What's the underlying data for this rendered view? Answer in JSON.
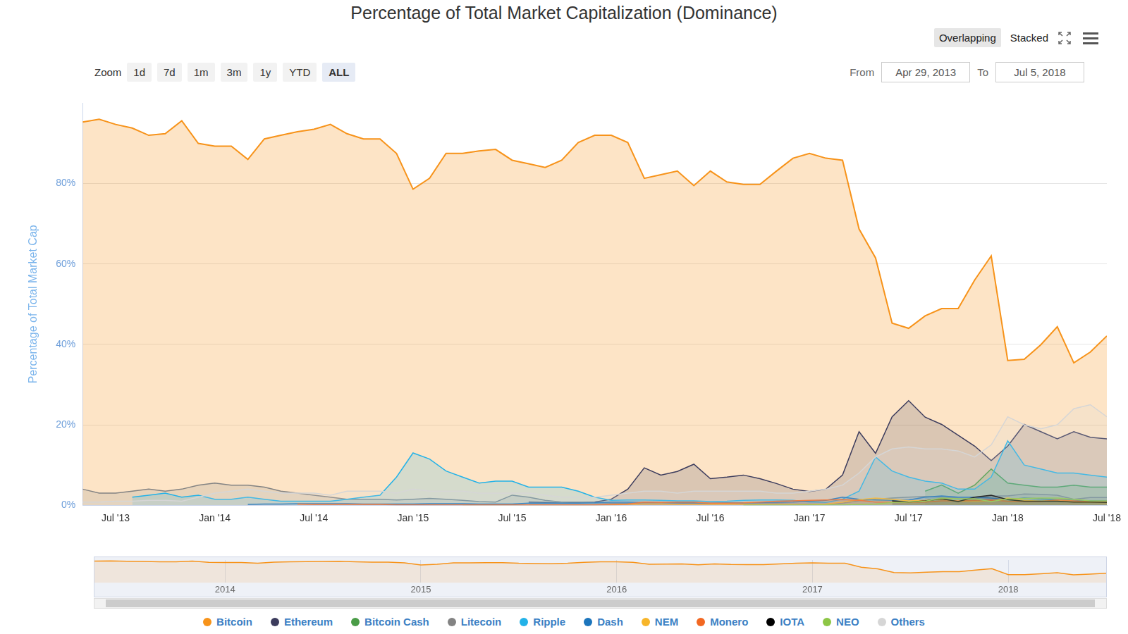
{
  "chart_data": {
    "type": "area",
    "title": "Percentage of Total Market Capitalization (Dominance)",
    "y_label": "Percentage of Total Market Cap",
    "categories": [
      null,
      null,
      "Jul '13",
      null,
      null,
      null,
      null,
      null,
      "Jan '14",
      null,
      null,
      null,
      null,
      null,
      "Jul '14",
      null,
      null,
      null,
      null,
      null,
      "Jan '15",
      null,
      null,
      null,
      null,
      null,
      "Jul '15",
      null,
      null,
      null,
      null,
      null,
      "Jan '16",
      null,
      null,
      null,
      null,
      null,
      "Jul '16",
      null,
      null,
      null,
      null,
      null,
      "Jan '17",
      null,
      null,
      null,
      null,
      null,
      "Jul '17",
      null,
      null,
      null,
      null,
      null,
      "Jan '18",
      null,
      null,
      null,
      null,
      null,
      "Jul '18"
    ],
    "ylim": [
      0,
      100
    ],
    "yticks": [
      {
        "value": 0,
        "label": "0%"
      },
      {
        "value": 20,
        "label": "20%"
      },
      {
        "value": 40,
        "label": "40%"
      },
      {
        "value": 60,
        "label": "60%"
      },
      {
        "value": 80,
        "label": "80%"
      }
    ],
    "grid": true,
    "legend": "bottom",
    "series": [
      {
        "name": "Bitcoin",
        "color": "#f7931a",
        "values": [
          95.3,
          96,
          94.7,
          93.8,
          92,
          92.4,
          95.6,
          90,
          89.3,
          89.3,
          86,
          91.1,
          92,
          92.9,
          93.5,
          94.7,
          92.4,
          91.1,
          91.1,
          87.5,
          78.6,
          81.3,
          87.5,
          87.5,
          88.1,
          88.5,
          85.8,
          84.9,
          84,
          85.8,
          90.2,
          92,
          92,
          90.2,
          81.3,
          82.2,
          83.1,
          79.5,
          83.1,
          80.4,
          79.8,
          79.8,
          83.1,
          86.3,
          87.5,
          86.3,
          85.8,
          68.7,
          61.5,
          45.3,
          44,
          47.1,
          48.9,
          48.9,
          56,
          62,
          36,
          36.3,
          39.9,
          44.4,
          35.4,
          38.1,
          42.1
        ]
      },
      {
        "name": "Ethereum",
        "color": "#3c3c5d",
        "values": [
          null,
          null,
          null,
          null,
          null,
          null,
          null,
          null,
          null,
          null,
          null,
          null,
          null,
          null,
          null,
          null,
          null,
          null,
          null,
          null,
          null,
          null,
          null,
          null,
          null,
          null,
          null,
          0.8,
          0.7,
          0.5,
          0.7,
          0.8,
          1.5,
          4,
          9.3,
          7.5,
          8.4,
          10.2,
          6.6,
          7,
          7.5,
          6.6,
          5.4,
          4,
          3.4,
          4,
          7.5,
          18.3,
          12.9,
          22,
          26,
          21.9,
          20.1,
          17.4,
          14.7,
          11.1,
          14.7,
          20.1,
          18.3,
          16.5,
          18.3,
          16.9,
          16.5
        ]
      },
      {
        "name": "Bitcoin Cash",
        "color": "#4a9c47",
        "values": [
          null,
          null,
          null,
          null,
          null,
          null,
          null,
          null,
          null,
          null,
          null,
          null,
          null,
          null,
          null,
          null,
          null,
          null,
          null,
          null,
          null,
          null,
          null,
          null,
          null,
          null,
          null,
          null,
          null,
          null,
          null,
          null,
          null,
          null,
          null,
          null,
          null,
          null,
          null,
          null,
          null,
          null,
          null,
          null,
          null,
          null,
          null,
          null,
          null,
          null,
          null,
          3.5,
          5,
          3,
          5,
          9,
          5.5,
          5,
          4.5,
          4.5,
          5,
          4.5,
          4.5
        ]
      },
      {
        "name": "Litecoin",
        "color": "#838383",
        "values": [
          4,
          3,
          3,
          3.5,
          4,
          3.5,
          4,
          5,
          5.5,
          5,
          5,
          4.5,
          3.5,
          3,
          2.5,
          2,
          1.5,
          1.5,
          1.5,
          1.3,
          1.5,
          1.7,
          1.5,
          1.2,
          0.9,
          0.8,
          2.5,
          2,
          1.2,
          0.8,
          0.8,
          0.6,
          0.5,
          0.5,
          0.4,
          0.4,
          0.4,
          0.5,
          0.4,
          0.4,
          0.4,
          0.3,
          0.4,
          0.3,
          0.3,
          0.3,
          0.5,
          1.1,
          1.5,
          1.8,
          2,
          2.2,
          2,
          1.8,
          1.7,
          2.3,
          2.3,
          2.8,
          2.7,
          2.5,
          1.5,
          1.9,
          1.9
        ]
      },
      {
        "name": "Ripple",
        "color": "#23b2e8",
        "values": [
          null,
          null,
          null,
          2,
          2.5,
          3,
          2,
          2.5,
          1.5,
          1.5,
          2,
          1.5,
          1,
          1,
          1,
          1,
          1.5,
          2,
          2.5,
          7,
          13,
          11.5,
          8.5,
          7,
          5.5,
          6,
          6,
          4.5,
          4.5,
          4.5,
          3.5,
          2,
          1.2,
          1.3,
          1.3,
          1.2,
          1.1,
          1.1,
          0.9,
          1,
          1.2,
          1.3,
          1.3,
          1.2,
          0.8,
          0.7,
          1.5,
          3.5,
          12,
          8.5,
          7,
          6,
          5.5,
          4,
          4,
          7,
          16,
          10,
          9,
          8,
          8,
          7.5,
          7
        ]
      },
      {
        "name": "Dash",
        "color": "#1c75bc",
        "values": [
          null,
          null,
          null,
          null,
          null,
          null,
          null,
          null,
          null,
          null,
          0.2,
          0.3,
          0.3,
          0.4,
          0.4,
          0.4,
          0.4,
          0.3,
          0.3,
          0.3,
          0.3,
          0.4,
          0.4,
          0.4,
          0.3,
          0.3,
          0.3,
          0.5,
          0.5,
          0.5,
          0.5,
          0.6,
          0.8,
          0.8,
          0.7,
          0.7,
          0.6,
          0.6,
          0.5,
          0.6,
          0.6,
          0.6,
          0.7,
          0.8,
          1,
          1.2,
          2,
          1.5,
          1.3,
          1.2,
          1.3,
          2,
          2.3,
          2,
          2,
          1.8,
          1.4,
          1.8,
          1.6,
          1.4,
          1.2,
          1.1,
          1.1
        ]
      },
      {
        "name": "NEM",
        "color": "#f7b52a",
        "values": [
          null,
          null,
          null,
          null,
          null,
          null,
          null,
          null,
          null,
          null,
          null,
          null,
          null,
          null,
          null,
          null,
          null,
          null,
          null,
          null,
          null,
          null,
          null,
          0.1,
          0.1,
          0.1,
          0.1,
          0.1,
          0.1,
          0.1,
          0.1,
          0.1,
          0.1,
          0.2,
          0.3,
          0.3,
          0.2,
          0.2,
          0.2,
          0.3,
          0.2,
          0.2,
          0.2,
          0.2,
          0.2,
          0.3,
          0.8,
          1.4,
          1.8,
          1.5,
          1.1,
          1.2,
          1.5,
          1,
          0.9,
          1.1,
          1.8,
          1.2,
          1,
          1.2,
          0.8,
          0.7,
          0.6
        ]
      },
      {
        "name": "Monero",
        "color": "#f26822",
        "values": [
          null,
          null,
          null,
          null,
          null,
          null,
          null,
          null,
          null,
          null,
          null,
          null,
          null,
          0.3,
          0.2,
          0.2,
          0.2,
          0.2,
          0.2,
          0.1,
          0.1,
          0.1,
          0.1,
          0.1,
          0.1,
          0.1,
          0.1,
          0.1,
          0.1,
          0.1,
          0.1,
          0.1,
          0.2,
          0.3,
          0.8,
          0.7,
          0.8,
          0.8,
          0.5,
          0.5,
          0.6,
          0.8,
          1,
          1.1,
          1.2,
          1.3,
          1.4,
          1.2,
          0.8,
          0.8,
          0.7,
          0.8,
          1.1,
          1.1,
          1.2,
          1.3,
          1,
          0.9,
          0.9,
          1.3,
          1.1,
          0.9,
          0.9
        ]
      },
      {
        "name": "IOTA",
        "color": "#000000",
        "values": [
          null,
          null,
          null,
          null,
          null,
          null,
          null,
          null,
          null,
          null,
          null,
          null,
          null,
          null,
          null,
          null,
          null,
          null,
          null,
          null,
          null,
          null,
          null,
          null,
          null,
          null,
          null,
          null,
          null,
          null,
          null,
          null,
          null,
          null,
          null,
          null,
          null,
          null,
          null,
          null,
          null,
          null,
          null,
          null,
          null,
          null,
          null,
          null,
          null,
          1.1,
          0.8,
          1.1,
          1.6,
          0.9,
          2,
          2.5,
          1.4,
          1,
          1,
          1,
          0.8,
          0.8,
          0.7
        ]
      },
      {
        "name": "NEO",
        "color": "#8dc646",
        "values": [
          null,
          null,
          null,
          null,
          null,
          null,
          null,
          null,
          null,
          null,
          null,
          null,
          null,
          null,
          null,
          null,
          null,
          null,
          null,
          null,
          null,
          null,
          null,
          null,
          null,
          null,
          null,
          null,
          null,
          null,
          null,
          null,
          null,
          null,
          null,
          null,
          null,
          null,
          null,
          null,
          0.05,
          0.05,
          0.05,
          0.05,
          0.1,
          0.1,
          0.1,
          0.2,
          0.3,
          0.7,
          0.8,
          1,
          1.8,
          1.6,
          1.6,
          0.9,
          1.6,
          1.7,
          1.8,
          1.8,
          1.5,
          1.1,
          1.1
        ]
      },
      {
        "name": "Others",
        "color": "#d6d6d6",
        "values": [
          0.8,
          0.8,
          1,
          1,
          1.2,
          1.2,
          1,
          2,
          3,
          3.5,
          4,
          3.5,
          3,
          3,
          3,
          2.5,
          3.5,
          3.5,
          3.5,
          3,
          4,
          3.5,
          3.5,
          3.5,
          3,
          3,
          3,
          3,
          2.5,
          2,
          2,
          2,
          2.5,
          3,
          3.5,
          3.5,
          3,
          3.5,
          3.5,
          3.5,
          3.5,
          3.5,
          3,
          3,
          3.5,
          4,
          5,
          8,
          12,
          14,
          14.5,
          14,
          14,
          13.5,
          12,
          15,
          22,
          20,
          19,
          20,
          24,
          25,
          22
        ]
      }
    ]
  },
  "ui": {
    "modes": [
      "Overlapping",
      "Stacked"
    ],
    "active_mode": "Overlapping",
    "zoom_label": "Zoom",
    "zoom_buttons": [
      "1d",
      "7d",
      "1m",
      "3m",
      "1y",
      "YTD",
      "ALL"
    ],
    "active_zoom": "ALL",
    "from_label": "From",
    "from": "Apr 29, 2013",
    "to_label": "To",
    "to": "Jul 5, 2018",
    "navigator": {
      "categories": [
        null,
        null,
        null,
        null,
        null,
        null,
        null,
        null,
        "2014",
        null,
        null,
        null,
        null,
        null,
        null,
        null,
        null,
        null,
        null,
        null,
        "2015",
        null,
        null,
        null,
        null,
        null,
        null,
        null,
        null,
        null,
        null,
        null,
        "2016",
        null,
        null,
        null,
        null,
        null,
        null,
        null,
        null,
        null,
        null,
        null,
        "2017",
        null,
        null,
        null,
        null,
        null,
        null,
        null,
        null,
        null,
        null,
        null,
        "2018",
        null,
        null,
        null,
        null,
        null,
        null
      ]
    }
  }
}
